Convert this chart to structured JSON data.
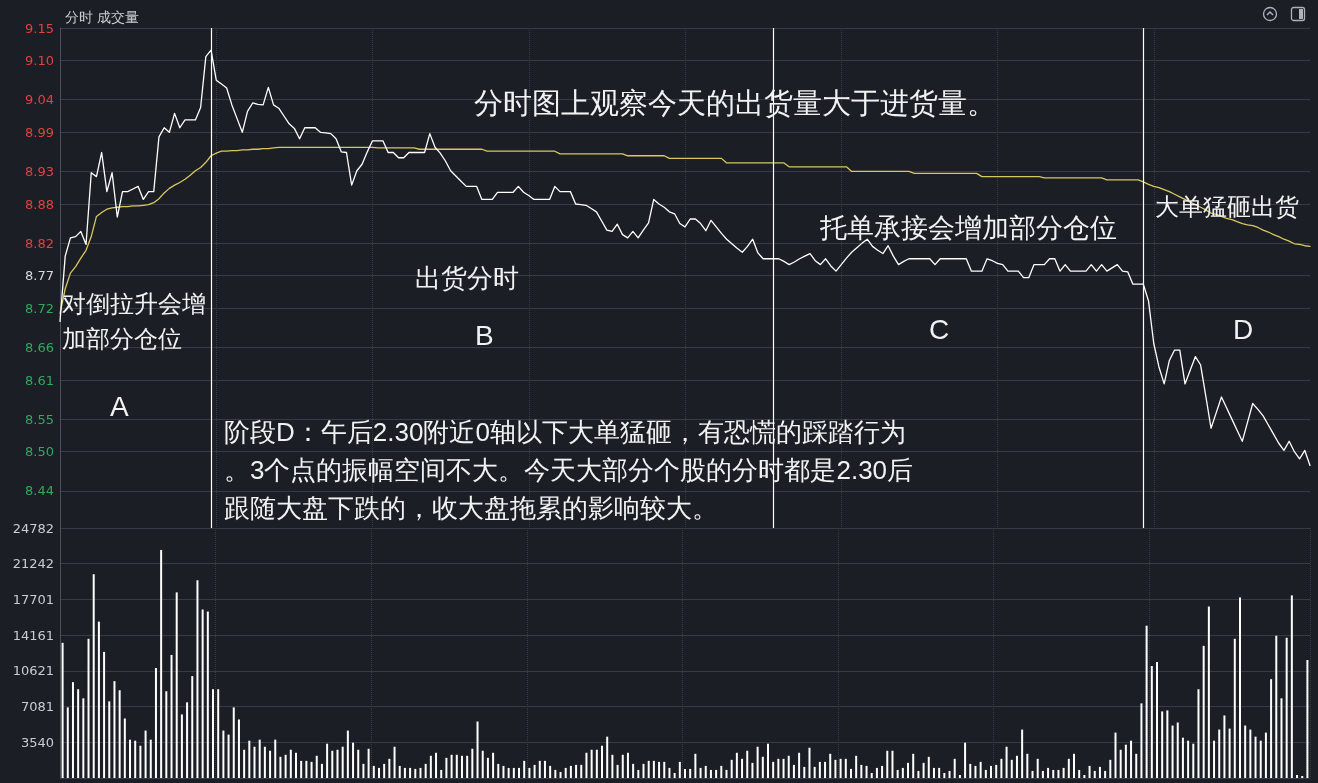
{
  "chart_data": [
    {
      "type": "line",
      "title": "分时 成交量",
      "categories": [
        null,
        null,
        null,
        null,
        null,
        null,
        null,
        null,
        null,
        null,
        null,
        null,
        null,
        null,
        null,
        null,
        null,
        null,
        null,
        null,
        null,
        null,
        null,
        null,
        null,
        null,
        null,
        null,
        null,
        null,
        null,
        null,
        null,
        null,
        null,
        null,
        null,
        null,
        null,
        null,
        null,
        null,
        null,
        null,
        null,
        null,
        null,
        null,
        null,
        null,
        null,
        null,
        null,
        null,
        null,
        null,
        null,
        null,
        null,
        null,
        null,
        null,
        null,
        null,
        null,
        null,
        null,
        null,
        null,
        null,
        null,
        null,
        null,
        null,
        null,
        null,
        null,
        null,
        null,
        null,
        null,
        null,
        null,
        null,
        null,
        null,
        null,
        null,
        null,
        null,
        null,
        null,
        null,
        null,
        null,
        null,
        null,
        null,
        null,
        null,
        null,
        null,
        null,
        null,
        null,
        null,
        null,
        null,
        null,
        null,
        null,
        null,
        null,
        null,
        null,
        null,
        null,
        null,
        null,
        null,
        null,
        null,
        null,
        null,
        null,
        null,
        null,
        null,
        null,
        null,
        null,
        null,
        null,
        null,
        null,
        null,
        null,
        null,
        null,
        null,
        null,
        null,
        null,
        null,
        null,
        null,
        null,
        null,
        null,
        null,
        null,
        null,
        null,
        null,
        null,
        null,
        null,
        null,
        null,
        null,
        null,
        null,
        null,
        null,
        null,
        null,
        null,
        null,
        null,
        null,
        null,
        null,
        null,
        null,
        null,
        null,
        null,
        null,
        null,
        null,
        null,
        null,
        null,
        null,
        null,
        null,
        null,
        null,
        null,
        null,
        null,
        null,
        null,
        null,
        null,
        null,
        null,
        null,
        null,
        null,
        null,
        null,
        null,
        null,
        null,
        null,
        null,
        null,
        null,
        null,
        null,
        null,
        null,
        null,
        null,
        null,
        null,
        null,
        null,
        null,
        null,
        null,
        null,
        null,
        null,
        null,
        null,
        null,
        null,
        null,
        null,
        null,
        null,
        null,
        null,
        null,
        null,
        null,
        null,
        null,
        null
      ],
      "ylim": [
        8.383,
        9.15
      ],
      "yticks": [
        8.44,
        {
          "value": 8.5,
          "label": "8.50"
        },
        8.55,
        8.61,
        8.66,
        8.72,
        8.77,
        8.82,
        8.88,
        8.93,
        8.99,
        9.04,
        {
          "value": 9.1,
          "label": "9.10"
        },
        9.15
      ],
      "tick_labels": "y",
      "grid": true,
      "line_style": "solid",
      "series": [
        {
          "color": "#ffffff",
          "values": [
            8.7,
            8.8,
            8.828,
            8.83,
            8.838,
            8.818,
            8.928,
            8.922,
            8.959,
            8.899,
            8.928,
            8.86,
            8.899,
            8.899,
            8.903,
            8.907,
            8.887,
            8.899,
            8.899,
            8.983,
            8.997,
            8.99,
            9.019,
            8.997,
            9.009,
            9.009,
            9.009,
            9.028,
            9.106,
            9.116,
            9.07,
            9.064,
            9.058,
            9.032,
            9.011,
            8.99,
            9.022,
            9.035,
            9.033,
            9.032,
            9.059,
            9.032,
            9.027,
            9.015,
            9.003,
            8.996,
            8.98,
            8.997,
            8.997,
            8.997,
            8.99,
            8.989,
            8.988,
            8.98,
            8.96,
            8.959,
            8.909,
            8.931,
            8.941,
            8.96,
            8.977,
            8.977,
            8.977,
            8.959,
            8.959,
            8.951,
            8.951,
            8.959,
            8.959,
            8.959,
            8.959,
            8.988,
            8.967,
            8.958,
            8.946,
            8.931,
            8.923,
            8.915,
            8.907,
            8.907,
            8.907,
            8.887,
            8.887,
            8.887,
            8.898,
            8.898,
            8.898,
            8.898,
            8.907,
            8.898,
            8.893,
            8.887,
            8.887,
            8.887,
            8.887,
            8.907,
            8.899,
            8.899,
            8.899,
            8.88,
            8.879,
            8.878,
            8.873,
            8.868,
            8.854,
            8.84,
            8.838,
            8.849,
            8.833,
            8.828,
            8.838,
            8.828,
            8.84,
            8.851,
            8.887,
            8.88,
            8.875,
            8.868,
            8.865,
            8.85,
            8.845,
            8.857,
            8.857,
            8.85,
            8.839,
            8.855,
            8.845,
            8.835,
            8.826,
            8.819,
            8.812,
            8.806,
            8.815,
            8.826,
            8.805,
            8.796,
            8.796,
            8.796,
            8.796,
            8.792,
            8.787,
            8.791,
            8.796,
            8.8,
            8.804,
            8.793,
            8.787,
            8.796,
            8.785,
            8.777,
            8.787,
            8.797,
            8.806,
            8.813,
            8.82,
            8.826,
            8.815,
            8.809,
            8.804,
            8.816,
            8.8,
            8.787,
            8.792,
            8.796,
            8.796,
            8.796,
            8.796,
            8.796,
            8.787,
            8.796,
            8.796,
            8.796,
            8.796,
            8.796,
            8.796,
            8.777,
            8.777,
            8.777,
            8.796,
            8.793,
            8.789,
            8.787,
            8.777,
            8.777,
            8.777,
            8.767,
            8.767,
            8.787,
            8.787,
            8.787,
            8.796,
            8.796,
            8.777,
            8.787,
            8.777,
            8.777,
            8.777,
            8.777,
            8.787,
            8.777,
            8.787,
            8.777,
            8.782,
            8.787,
            8.777,
            8.776,
            8.757,
            8.757,
            8.757,
            8.731,
            8.666,
            8.63,
            8.604,
            8.64,
            8.656,
            8.656,
            8.604,
            8.625,
            8.646,
            8.633,
            8.585,
            8.536,
            8.56,
            8.584,
            8.567,
            8.55,
            8.533,
            8.516,
            8.545,
            8.574,
            8.565,
            8.555,
            8.541,
            8.527,
            8.513,
            8.502,
            8.516,
            8.5,
            8.489,
            8.502,
            8.479
          ]
        },
        {
          "color": "#d8c85a",
          "values": [
            8.712,
            8.75,
            8.774,
            8.784,
            8.797,
            8.809,
            8.83,
            8.861,
            8.867,
            8.872,
            8.874,
            8.875,
            8.876,
            8.876,
            8.877,
            8.877,
            8.878,
            8.879,
            8.882,
            8.888,
            8.897,
            8.904,
            8.909,
            8.913,
            8.918,
            8.924,
            8.931,
            8.936,
            8.944,
            8.954,
            8.958,
            8.961,
            8.961,
            8.962,
            8.962,
            8.963,
            8.963,
            8.964,
            8.964,
            8.965,
            8.965,
            8.966,
            8.967,
            8.967,
            8.967,
            8.967,
            8.967,
            8.967,
            8.967,
            8.967,
            8.967,
            8.967,
            8.967,
            8.967,
            8.967,
            8.967,
            8.967,
            8.967,
            8.967,
            8.967,
            8.967,
            8.966,
            8.966,
            8.966,
            8.966,
            8.966,
            8.966,
            8.966,
            8.966,
            8.964,
            8.964,
            8.964,
            8.964,
            8.964,
            8.964,
            8.964,
            8.964,
            8.964,
            8.964,
            8.964,
            8.964,
            8.964,
            8.961,
            8.961,
            8.961,
            8.961,
            8.961,
            8.961,
            8.961,
            8.961,
            8.961,
            8.961,
            8.961,
            8.961,
            8.961,
            8.961,
            8.957,
            8.957,
            8.957,
            8.957,
            8.957,
            8.957,
            8.957,
            8.957,
            8.957,
            8.957,
            8.957,
            8.957,
            8.957,
            8.954,
            8.954,
            8.954,
            8.954,
            8.954,
            8.954,
            8.954,
            8.954,
            8.95,
            8.95,
            8.95,
            8.95,
            8.95,
            8.95,
            8.95,
            8.95,
            8.95,
            8.95,
            8.95,
            8.943,
            8.943,
            8.943,
            8.943,
            8.943,
            8.943,
            8.943,
            8.943,
            8.943,
            8.943,
            8.943,
            8.943,
            8.937,
            8.937,
            8.937,
            8.937,
            8.937,
            8.937,
            8.937,
            8.937,
            8.937,
            8.937,
            8.937,
            8.937,
            8.93,
            8.93,
            8.93,
            8.93,
            8.93,
            8.93,
            8.93,
            8.93,
            8.93,
            8.93,
            8.93,
            8.93,
            8.927,
            8.927,
            8.927,
            8.927,
            8.927,
            8.927,
            8.927,
            8.927,
            8.927,
            8.927,
            8.927,
            8.927,
            8.927,
            8.922,
            8.922,
            8.922,
            8.922,
            8.922,
            8.922,
            8.922,
            8.922,
            8.922,
            8.922,
            8.922,
            8.922,
            8.92,
            8.92,
            8.92,
            8.92,
            8.92,
            8.92,
            8.92,
            8.92,
            8.92,
            8.92,
            8.92,
            8.92,
            8.917,
            8.917,
            8.917,
            8.917,
            8.917,
            8.917,
            8.917,
            8.914,
            8.91,
            8.907,
            8.905,
            8.902,
            8.899,
            8.895,
            8.891,
            8.887,
            8.883,
            8.879,
            8.875,
            8.871,
            8.866,
            8.864,
            8.861,
            8.858,
            8.856,
            8.853,
            8.85,
            8.848,
            8.847,
            8.844,
            8.84,
            8.837,
            8.833,
            8.83,
            8.826,
            8.823,
            8.819,
            8.818,
            8.816,
            8.815
          ]
        }
      ],
      "annotations": [
        "分时图上观察今天的出货量大于进货量。",
        "对倒拉升会增加部分仓位",
        "A",
        "出货分时",
        "B",
        "托单承接会增加部分仓位",
        "C",
        "大单猛砸出货",
        "D",
        "阶段D：午后2.30附近0轴以下大单猛砸，有恐慌的踩踏行为。3个点的振幅空间不大。今天大部分个股的分时都是2.30后跟随大盘下跌的，收大盘拖累的影响较大。"
      ]
    },
    {
      "type": "bar",
      "color": "#ffffff",
      "categories": [
        null,
        null,
        null,
        null,
        null,
        null,
        null,
        null,
        null,
        null,
        null,
        null,
        null,
        null,
        null,
        null,
        null,
        null,
        null,
        null,
        null,
        null,
        null,
        null,
        null,
        null,
        null,
        null,
        null,
        null,
        null,
        null,
        null,
        null,
        null,
        null,
        null,
        null,
        null,
        null,
        null,
        null,
        null,
        null,
        null,
        null,
        null,
        null,
        null,
        null,
        null,
        null,
        null,
        null,
        null,
        null,
        null,
        null,
        null,
        null,
        null,
        null,
        null,
        null,
        null,
        null,
        null,
        null,
        null,
        null,
        null,
        null,
        null,
        null,
        null,
        null,
        null,
        null,
        null,
        null,
        null,
        null,
        null,
        null,
        null,
        null,
        null,
        null,
        null,
        null,
        null,
        null,
        null,
        null,
        null,
        null,
        null,
        null,
        null,
        null,
        null,
        null,
        null,
        null,
        null,
        null,
        null,
        null,
        null,
        null,
        null,
        null,
        null,
        null,
        null,
        null,
        null,
        null,
        null,
        null,
        null,
        null,
        null,
        null,
        null,
        null,
        null,
        null,
        null,
        null,
        null,
        null,
        null,
        null,
        null,
        null,
        null,
        null,
        null,
        null,
        null,
        null,
        null,
        null,
        null,
        null,
        null,
        null,
        null,
        null,
        null,
        null,
        null,
        null,
        null,
        null,
        null,
        null,
        null,
        null,
        null,
        null,
        null,
        null,
        null,
        null,
        null,
        null,
        null,
        null,
        null,
        null,
        null,
        null,
        null,
        null,
        null,
        null,
        null,
        null,
        null,
        null,
        null,
        null,
        null,
        null,
        null,
        null,
        null,
        null,
        null,
        null,
        null,
        null,
        null,
        null,
        null,
        null,
        null,
        null,
        null,
        null,
        null,
        null,
        null,
        null,
        null,
        null,
        null,
        null,
        null,
        null,
        null,
        null,
        null,
        null,
        null,
        null,
        null,
        null,
        null,
        null,
        null,
        null,
        null,
        null,
        null,
        null,
        null,
        null,
        null,
        null,
        null,
        null,
        null,
        null,
        null,
        null,
        null,
        null,
        null
      ],
      "ylim": [
        0,
        24782
      ],
      "yticks": [
        3540,
        7081,
        10621,
        14161,
        17701,
        21242,
        24782
      ],
      "tick_labels": "y",
      "grid": true,
      "values": [
        13400,
        7000,
        9500,
        8800,
        7900,
        13800,
        20200,
        15500,
        12500,
        7600,
        9600,
        8700,
        5900,
        3800,
        3700,
        3200,
        4700,
        3800,
        10900,
        22600,
        8600,
        12200,
        18400,
        6300,
        7500,
        10100,
        19600,
        16700,
        16500,
        8800,
        8800,
        4700,
        4300,
        7000,
        5800,
        2800,
        3700,
        3100,
        3800,
        3100,
        2700,
        3800,
        2100,
        2300,
        2800,
        2500,
        1700,
        1700,
        1600,
        2200,
        1400,
        3400,
        2700,
        2800,
        3100,
        4700,
        3500,
        2800,
        1400,
        2900,
        1200,
        1000,
        1400,
        1900,
        3100,
        1200,
        1000,
        1000,
        900,
        1000,
        1400,
        2200,
        2500,
        800,
        2000,
        2300,
        2300,
        2200,
        2200,
        2900,
        5600,
        2700,
        2000,
        2500,
        1400,
        1200,
        1000,
        1000,
        1000,
        1700,
        1000,
        1300,
        1700,
        1700,
        1200,
        800,
        600,
        1000,
        1200,
        1300,
        1300,
        2500,
        2800,
        2800,
        3200,
        4100,
        2300,
        1300,
        2300,
        2500,
        1400,
        800,
        1400,
        1700,
        1700,
        1600,
        1600,
        1000,
        500,
        1600,
        900,
        900,
        2400,
        1000,
        1200,
        800,
        800,
        1200,
        800,
        1800,
        2500,
        1900,
        2700,
        1500,
        3100,
        2100,
        3400,
        1600,
        1900,
        1900,
        2200,
        1300,
        2500,
        1100,
        3000,
        1100,
        1600,
        1600,
        2400,
        1800,
        1900,
        1900,
        900,
        2200,
        1300,
        1200,
        500,
        1000,
        1200,
        2700,
        2700,
        800,
        1000,
        1500,
        2400,
        700,
        1500,
        2100,
        1000,
        1000,
        500,
        700,
        1900,
        300,
        3500,
        1400,
        1200,
        1600,
        800,
        1200,
        1300,
        1900,
        3100,
        1800,
        2200,
        4800,
        2400,
        700,
        1900,
        700,
        1000,
        800,
        800,
        1000,
        1900,
        2400,
        800,
        300,
        1200,
        700,
        1100,
        700,
        1800,
        4500,
        2800,
        3300,
        3700,
        2400,
        7400,
        15100,
        11100,
        11500,
        6600,
        6700,
        5200,
        5500,
        4000,
        3700,
        3400,
        8800,
        13100,
        17000,
        3700,
        4800,
        6200,
        4900,
        13800,
        17900,
        5200,
        4800,
        4100,
        3700,
        4500,
        9800,
        14100,
        7900,
        13900,
        18100,
        300,
        200,
        11700
      ]
    }
  ]
}
